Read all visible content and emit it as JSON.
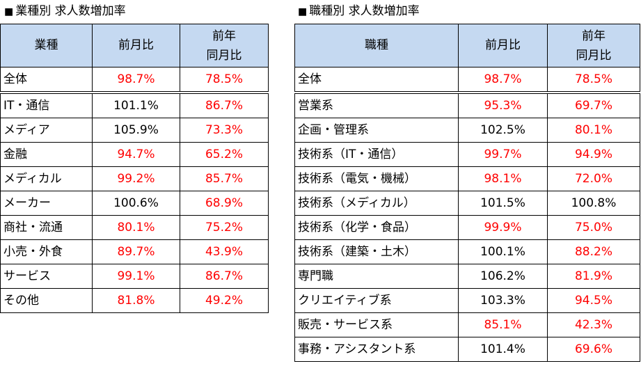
{
  "industry": {
    "title": "業種別 求人数増加率",
    "headers": {
      "col1": "業種",
      "col2": "前月比",
      "col3_line1": "前年",
      "col3_line2": "同月比"
    },
    "rows": [
      {
        "name": "全体",
        "mom": "98.7%",
        "yoy": "78.5%",
        "mom_color": "red",
        "yoy_color": "red"
      },
      {
        "name": "IT・通信",
        "mom": "101.1%",
        "yoy": "86.7%",
        "mom_color": "black",
        "yoy_color": "red"
      },
      {
        "name": "メディア",
        "mom": "105.9%",
        "yoy": "73.3%",
        "mom_color": "black",
        "yoy_color": "red"
      },
      {
        "name": "金融",
        "mom": "94.7%",
        "yoy": "65.2%",
        "mom_color": "red",
        "yoy_color": "red"
      },
      {
        "name": "メディカル",
        "mom": "99.2%",
        "yoy": "85.7%",
        "mom_color": "red",
        "yoy_color": "red"
      },
      {
        "name": "メーカー",
        "mom": "100.6%",
        "yoy": "68.9%",
        "mom_color": "black",
        "yoy_color": "red"
      },
      {
        "name": "商社・流通",
        "mom": "80.1%",
        "yoy": "75.2%",
        "mom_color": "red",
        "yoy_color": "red"
      },
      {
        "name": "小売・外食",
        "mom": "89.7%",
        "yoy": "43.9%",
        "mom_color": "red",
        "yoy_color": "red"
      },
      {
        "name": "サービス",
        "mom": "99.1%",
        "yoy": "86.7%",
        "mom_color": "red",
        "yoy_color": "red"
      },
      {
        "name": "その他",
        "mom": "81.8%",
        "yoy": "49.2%",
        "mom_color": "red",
        "yoy_color": "red"
      }
    ]
  },
  "job": {
    "title": "職種別 求人数増加率",
    "headers": {
      "col1": "職種",
      "col2": "前月比",
      "col3_line1": "前年",
      "col3_line2": "同月比"
    },
    "rows": [
      {
        "name": "全体",
        "mom": "98.7%",
        "yoy": "78.5%",
        "mom_color": "red",
        "yoy_color": "red"
      },
      {
        "name": "営業系",
        "mom": "95.3%",
        "yoy": "69.7%",
        "mom_color": "red",
        "yoy_color": "red"
      },
      {
        "name": "企画・管理系",
        "mom": "102.5%",
        "yoy": "80.1%",
        "mom_color": "black",
        "yoy_color": "red"
      },
      {
        "name": "技術系（IT・通信）",
        "mom": "99.7%",
        "yoy": "94.9%",
        "mom_color": "red",
        "yoy_color": "red"
      },
      {
        "name": "技術系（電気・機械）",
        "mom": "98.1%",
        "yoy": "72.0%",
        "mom_color": "red",
        "yoy_color": "red"
      },
      {
        "name": "技術系（メディカル）",
        "mom": "101.5%",
        "yoy": "100.8%",
        "mom_color": "black",
        "yoy_color": "black"
      },
      {
        "name": "技術系（化学・食品）",
        "mom": "99.9%",
        "yoy": "75.0%",
        "mom_color": "red",
        "yoy_color": "red"
      },
      {
        "name": "技術系（建築・土木）",
        "mom": "100.1%",
        "yoy": "88.2%",
        "mom_color": "black",
        "yoy_color": "red"
      },
      {
        "name": "専門職",
        "mom": "106.2%",
        "yoy": "81.9%",
        "mom_color": "black",
        "yoy_color": "red"
      },
      {
        "name": "クリエイティブ系",
        "mom": "103.3%",
        "yoy": "94.5%",
        "mom_color": "black",
        "yoy_color": "red"
      },
      {
        "name": "販売・サービス系",
        "mom": "85.1%",
        "yoy": "42.3%",
        "mom_color": "red",
        "yoy_color": "red"
      },
      {
        "name": "事務・アシスタント系",
        "mom": "101.4%",
        "yoy": "69.6%",
        "mom_color": "black",
        "yoy_color": "red"
      }
    ]
  },
  "colors": {
    "header_bg": "#c5d9f1",
    "red": "#ff0000",
    "black": "#000000"
  },
  "icons": {
    "title_marker": "■"
  }
}
